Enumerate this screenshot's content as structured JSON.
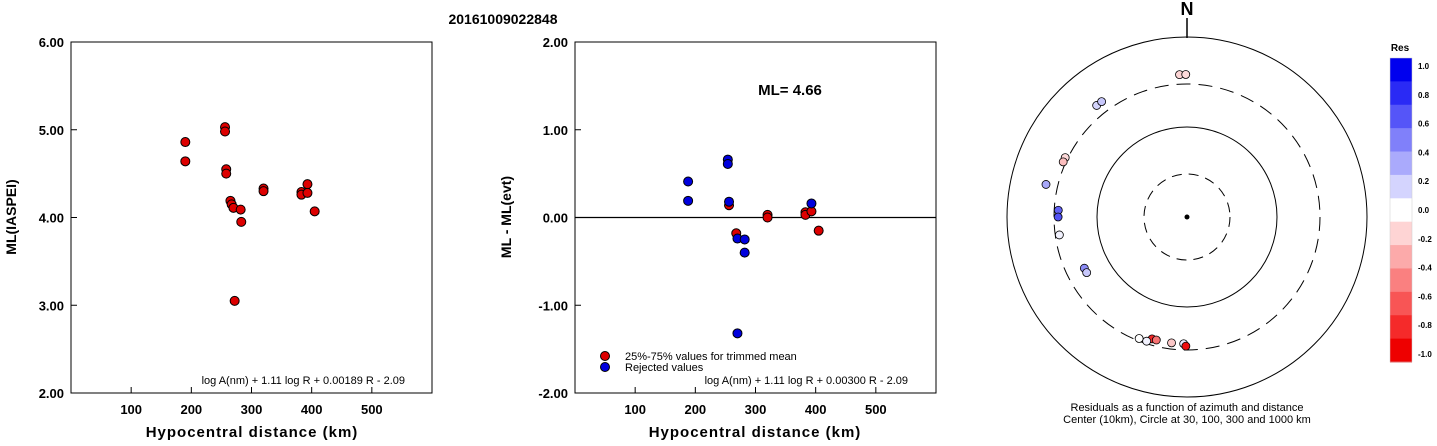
{
  "figure_title": "20161009022848",
  "chart_data": [
    {
      "type": "scatter",
      "id": "ml-vs-distance",
      "xlabel": "Hypocentral distance (km)",
      "ylabel": "ML(IASPEI)",
      "xlim": [
        0,
        600
      ],
      "ylim": [
        2.0,
        6.0
      ],
      "x_ticks": [
        100,
        200,
        300,
        400,
        500
      ],
      "x_tick_labels": [
        "100",
        "200",
        "300",
        "400",
        "500"
      ],
      "y_ticks": [
        2.0,
        3.0,
        4.0,
        5.0,
        6.0
      ],
      "y_tick_labels": [
        "2.00",
        "3.00",
        "4.00",
        "5.00",
        "6.00"
      ],
      "formula": "log A(nm) + 1.11 log R + 0.00189 R - 2.09",
      "marker_color": "#dd0000",
      "points": [
        {
          "x": 190,
          "y": 4.86
        },
        {
          "x": 190,
          "y": 4.64
        },
        {
          "x": 256,
          "y": 5.03
        },
        {
          "x": 256,
          "y": 4.98
        },
        {
          "x": 258,
          "y": 4.55
        },
        {
          "x": 258,
          "y": 4.5
        },
        {
          "x": 265,
          "y": 4.19
        },
        {
          "x": 267,
          "y": 4.15
        },
        {
          "x": 270,
          "y": 4.11
        },
        {
          "x": 272,
          "y": 3.05
        },
        {
          "x": 282,
          "y": 4.09
        },
        {
          "x": 283,
          "y": 3.95
        },
        {
          "x": 320,
          "y": 4.33
        },
        {
          "x": 320,
          "y": 4.3
        },
        {
          "x": 383,
          "y": 4.29
        },
        {
          "x": 383,
          "y": 4.26
        },
        {
          "x": 393,
          "y": 4.38
        },
        {
          "x": 393,
          "y": 4.28
        },
        {
          "x": 405,
          "y": 4.07
        }
      ]
    },
    {
      "type": "scatter",
      "id": "residual-vs-distance",
      "xlabel": "Hypocentral distance (km)",
      "ylabel": "ML - ML(evt)",
      "xlim": [
        0,
        600
      ],
      "ylim": [
        -2.0,
        2.0
      ],
      "x_ticks": [
        100,
        200,
        300,
        400,
        500
      ],
      "x_tick_labels": [
        "100",
        "200",
        "300",
        "400",
        "500"
      ],
      "y_ticks": [
        -2.0,
        -1.0,
        0.0,
        1.0,
        2.0
      ],
      "y_tick_labels": [
        "-2.00",
        "-1.00",
        "0.00",
        "1.00",
        "2.00"
      ],
      "annotation": "ML= 4.66",
      "formula": "log A(nm) + 1.11 log R + 0.00300 R - 2.09",
      "series": [
        {
          "name": "25%-75% values for trimmed mean",
          "color": "#dd0000",
          "points": [
            {
              "x": 256,
              "y": 0.14
            },
            {
              "x": 268,
              "y": -0.18
            },
            {
              "x": 320,
              "y": 0.03
            },
            {
              "x": 320,
              "y": 0.0
            },
            {
              "x": 383,
              "y": 0.06
            },
            {
              "x": 383,
              "y": 0.03
            },
            {
              "x": 393,
              "y": 0.07
            },
            {
              "x": 405,
              "y": -0.15
            }
          ]
        },
        {
          "name": "Rejected values",
          "color": "#0000dd",
          "points": [
            {
              "x": 188,
              "y": 0.41
            },
            {
              "x": 188,
              "y": 0.19
            },
            {
              "x": 254,
              "y": 0.66
            },
            {
              "x": 254,
              "y": 0.61
            },
            {
              "x": 256,
              "y": 0.18
            },
            {
              "x": 270,
              "y": -0.24
            },
            {
              "x": 270,
              "y": -1.32
            },
            {
              "x": 282,
              "y": -0.25
            },
            {
              "x": 282,
              "y": -0.4
            },
            {
              "x": 393,
              "y": 0.16
            }
          ]
        }
      ]
    },
    {
      "type": "polar-scatter",
      "id": "azimuth-residuals",
      "north_label": "N",
      "caption_line1": "Residuals as a function of azimuth and distance",
      "caption_line2": "Center (10km), Circle at 30, 100, 300 and 1000 km",
      "colorbar_title": "Res",
      "colorbar_ticks": [
        "1.0",
        "0.8",
        "0.6",
        "0.4",
        "0.2",
        "0.0",
        "-0.2",
        "-0.4",
        "-0.6",
        "-0.8",
        "-1.0"
      ],
      "colorbar_colors": [
        "#0000ee",
        "#2a2af5",
        "#5555f8",
        "#8080fa",
        "#aaaafc",
        "#d4d4fe",
        "#ffffff",
        "#fed4d4",
        "#fcaaaa",
        "#fa8080",
        "#f85555",
        "#f52a2a",
        "#ee0000"
      ],
      "points": [
        {
          "az": 357.0,
          "dist": 383,
          "res": -0.17
        },
        {
          "az": 359.5,
          "dist": 383,
          "res": -0.14
        },
        {
          "az": 321.0,
          "dist": 393,
          "res": 0.17
        },
        {
          "az": 323.5,
          "dist": 393,
          "res": 0.22
        },
        {
          "az": 296.0,
          "dist": 320,
          "res": -0.15
        },
        {
          "az": 294.0,
          "dist": 320,
          "res": -0.26
        },
        {
          "az": 283.0,
          "dist": 405,
          "res": 0.34
        },
        {
          "az": 273.0,
          "dist": 270,
          "res": 0.62
        },
        {
          "az": 270.0,
          "dist": 270,
          "res": 0.68
        },
        {
          "az": 262.0,
          "dist": 270,
          "res": 0.05
        },
        {
          "az": 243.5,
          "dist": 188,
          "res": 0.45
        },
        {
          "az": 241.0,
          "dist": 188,
          "res": 0.22
        },
        {
          "az": 196.0,
          "dist": 256,
          "res": -0.85
        },
        {
          "az": 194.0,
          "dist": 256,
          "res": -0.55
        },
        {
          "az": 187.0,
          "dist": 256,
          "res": -0.22
        },
        {
          "az": 181.5,
          "dist": 256,
          "res": 0.08
        },
        {
          "az": 198.0,
          "dist": 282,
          "res": 0.05
        },
        {
          "az": 201.5,
          "dist": 282,
          "res": 0.0
        },
        {
          "az": 180.5,
          "dist": 272,
          "res": -0.95
        }
      ]
    }
  ]
}
